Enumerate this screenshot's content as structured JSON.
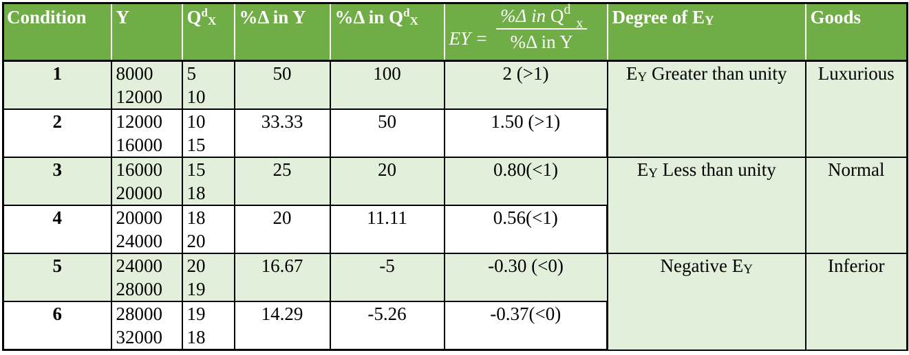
{
  "colors": {
    "header_bg": "#70AD47",
    "header_text": "#FFFFFF",
    "shaded_row_bg": "#E2EFDA",
    "plain_row_bg": "#FFFFFF",
    "border": "#000000"
  },
  "header": {
    "condition": "Condition",
    "y": "Y",
    "qdx_base": "Q",
    "qdx_sup": "d",
    "qdx_sub": "X",
    "pct_y": "%Δ in Y",
    "pct_q_prefix": "%Δ in Q",
    "pct_q_sup": "d",
    "pct_q_sub": "X",
    "formula_lhs": "EY =",
    "formula_num_a": "%Δ",
    "formula_num_b": "in",
    "formula_num_c": "Q",
    "formula_num_sup": "d",
    "formula_num_sub": "x",
    "formula_den": "%Δ in Y",
    "degree_prefix": "Degree of E",
    "degree_sub": "Y",
    "goods": "Goods"
  },
  "rows": [
    {
      "condition": "1",
      "y1": "8000",
      "y2": "12000",
      "q1": "5",
      "q2": "10",
      "pct_y": "50",
      "pct_q": "100",
      "ey": "2 (>1)"
    },
    {
      "condition": "2",
      "y1": "12000",
      "y2": "16000",
      "q1": "10",
      "q2": "15",
      "pct_y": "33.33",
      "pct_q": "50",
      "ey": "1.50 (>1)"
    },
    {
      "condition": "3",
      "y1": "16000",
      "y2": "20000",
      "q1": "15",
      "q2": "18",
      "pct_y": "25",
      "pct_q": "20",
      "ey": "0.80(<1)"
    },
    {
      "condition": "4",
      "y1": "20000",
      "y2": "24000",
      "q1": "18",
      "q2": "20",
      "pct_y": "20",
      "pct_q": "11.11",
      "ey": "0.56(<1)"
    },
    {
      "condition": "5",
      "y1": "24000",
      "y2": "28000",
      "q1": "20",
      "q2": "19",
      "pct_y": "16.67",
      "pct_q": "-5",
      "ey": "-0.30 (<0)"
    },
    {
      "condition": "6",
      "y1": "28000",
      "y2": "32000",
      "q1": "19",
      "q2": "18",
      "pct_y": "14.29",
      "pct_q": "-5.26",
      "ey": "-0.37(<0)"
    }
  ],
  "groups": [
    {
      "degree_prefix": "E",
      "degree_sub": "Y",
      "degree_suffix": " Greater than unity",
      "goods": "Luxurious"
    },
    {
      "degree_prefix": "E",
      "degree_sub": "Y",
      "degree_suffix": " Less than unity",
      "goods": "Normal"
    },
    {
      "degree_prefix": "Negative E",
      "degree_sub": "Y",
      "degree_suffix": "",
      "goods": "Inferior"
    }
  ]
}
